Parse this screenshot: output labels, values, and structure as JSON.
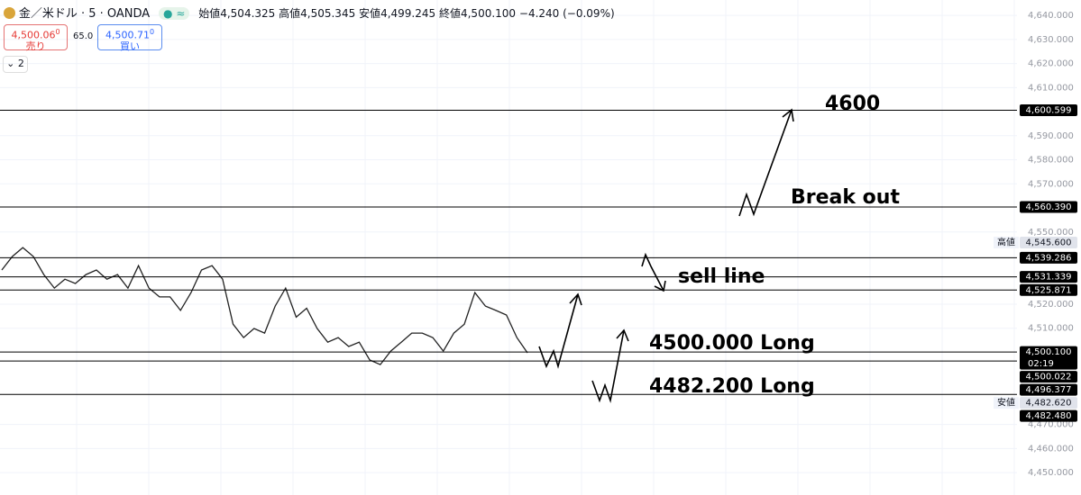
{
  "header": {
    "symbol": "金／米ドル · 5 · OANDA",
    "ohlc": [
      {
        "label": "始値",
        "value": "4,504.325"
      },
      {
        "label": "高値",
        "value": "4,505.345"
      },
      {
        "label": "安値",
        "value": "4,499.245"
      },
      {
        "label": "終値",
        "value": "4,500.100"
      }
    ],
    "change": "−4.240 (−0.09%)"
  },
  "sell": {
    "price": "4,500.06",
    "sup": "0",
    "label": "売り"
  },
  "spread": "65.0",
  "buy": {
    "price": "4,500.71",
    "sup": "0",
    "label": "買い"
  },
  "indicator_count": "2",
  "chart_data": {
    "type": "line",
    "color": "#222222",
    "values": [
      4534.2,
      4539.8,
      4543.5,
      4539.8,
      4532.3,
      4526.7,
      4530.4,
      4528.6,
      4532.3,
      4534.2,
      4530.4,
      4532.3,
      4526.7,
      4536.0,
      4526.7,
      4523.0,
      4523.0,
      4517.4,
      4524.8,
      4534.2,
      4536.0,
      4530.4,
      4511.7,
      4506.1,
      4509.9,
      4508.0,
      4519.2,
      4526.7,
      4514.6,
      4518.3,
      4509.9,
      4504.2,
      4506.1,
      4502.4,
      4504.2,
      4496.8,
      4494.9,
      4500.5,
      4504.2,
      4508.0,
      4508.0,
      4506.1,
      4500.5,
      4508.0,
      4511.7,
      4524.8,
      4519.2,
      4517.4,
      4515.5,
      4506.1,
      4499.8
    ],
    "ylim": [
      4440.7,
      4646.4
    ],
    "yticks": [
      {
        "value": 4640,
        "label": "4,640.000"
      },
      {
        "value": 4630,
        "label": "4,630.000"
      },
      {
        "value": 4620,
        "label": "4,620.000"
      },
      {
        "value": 4610,
        "label": "4,610.000"
      },
      {
        "value": 4590,
        "label": "4,590.000"
      },
      {
        "value": 4580,
        "label": "4,580.000"
      },
      {
        "value": 4570,
        "label": "4,570.000"
      },
      {
        "value": 4550,
        "label": "4,550.000"
      },
      {
        "value": 4520,
        "label": "4,520.000"
      },
      {
        "value": 4510,
        "label": "4,510.000"
      },
      {
        "value": 4470,
        "label": "4,470.000"
      },
      {
        "value": 4460,
        "label": "4,460.000"
      },
      {
        "value": 4450,
        "label": "4,450.000"
      }
    ],
    "grid": true,
    "levels": {
      "values": [
        4600.599,
        4560.39,
        4539.286,
        4531.339,
        4525.871,
        4500.1,
        4496.377,
        4482.48
      ],
      "value_labels": [
        "4,600.599",
        "4,560.390",
        "4,539.286",
        "4,531.339",
        "4,525.871",
        "4,500.100",
        "4,496.377",
        "4,482.480"
      ]
    },
    "countdown": "02:19",
    "bid": {
      "value": 4500.022,
      "value_label": "4,500.022"
    },
    "high": {
      "label": "高値",
      "value": 4545.6,
      "value_label": "4,545.600"
    },
    "low": {
      "label": "安値",
      "value": 4482.62,
      "value_label": "4,482.620"
    },
    "annotations": [
      "4600",
      "Break out",
      "sell line",
      "4500.000 Long",
      "4482.200 Long"
    ]
  }
}
